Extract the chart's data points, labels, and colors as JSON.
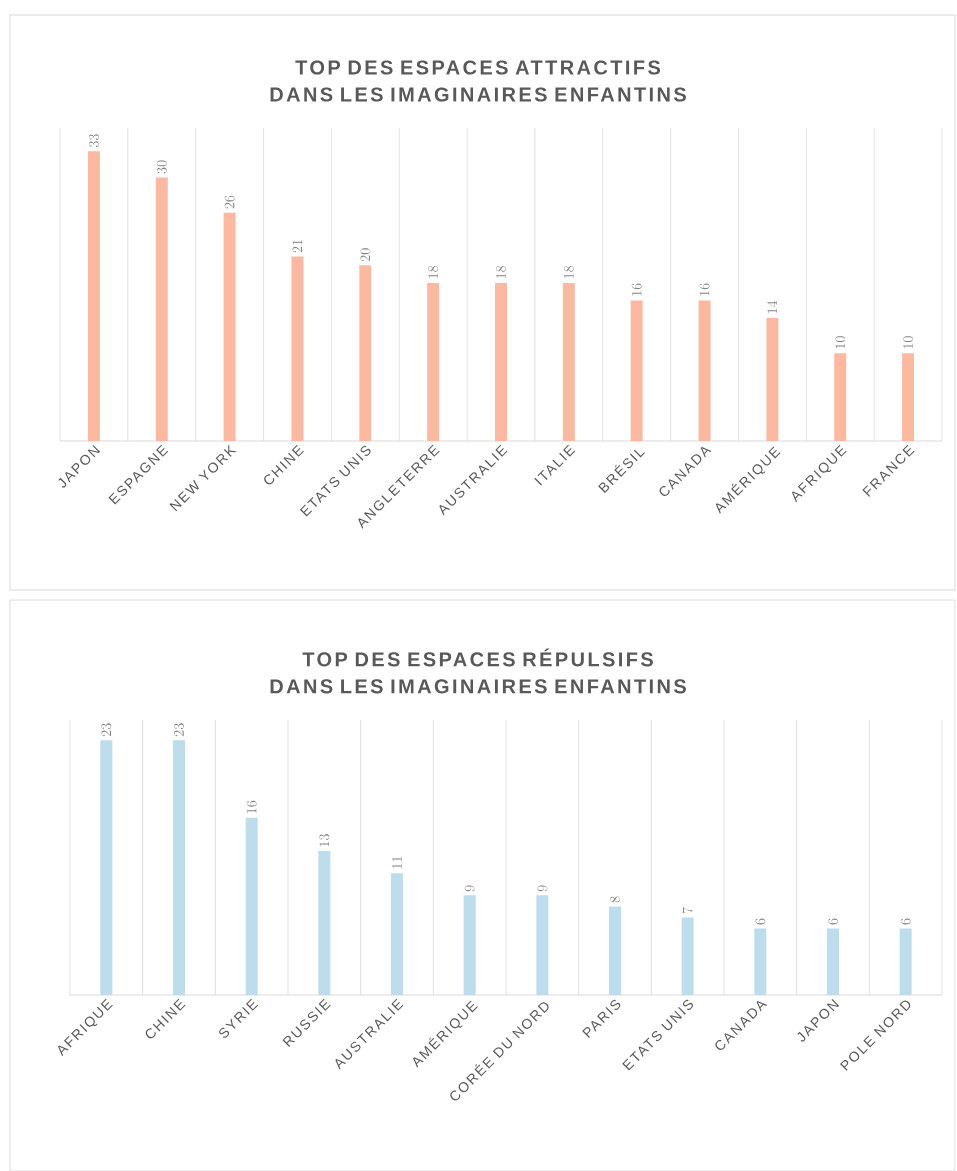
{
  "chart_data": [
    {
      "type": "bar",
      "title": "TOP DES ESPACES ATTRACTIFS DANS LES IMAGINAIRES ENFANTINS",
      "categories": [
        "JAPON",
        "ESPAGNE",
        "NEW YORK",
        "CHINE",
        "ETATS UNIS",
        "ANGLETERRE",
        "AUSTRALIE",
        "ITALIE",
        "BRÉSIL",
        "CANADA",
        "AMÉRIQUE",
        "AFRIQUE",
        "FRANCE"
      ],
      "values": [
        33,
        30,
        26,
        21,
        20,
        18,
        18,
        18,
        16,
        16,
        14,
        10,
        10
      ],
      "color": "#fbb9a1",
      "data_labels": true,
      "grid": "x"
    },
    {
      "type": "bar",
      "title": "TOP DES ESPACES RÉPULSIFS DANS LES IMAGINAIRES ENFANTINS",
      "categories": [
        "AFRIQUE",
        "CHINE",
        "SYRIE",
        "RUSSIE",
        "AUSTRALIE",
        "AMÉRIQUE",
        "CORÉE DU NORD",
        "PARIS",
        "ETATS UNIS",
        "CANADA",
        "JAPON",
        "POLE NORD"
      ],
      "values": [
        23,
        23,
        16,
        13,
        11,
        9,
        9,
        8,
        7,
        6,
        6,
        6
      ],
      "color": "#bddcec",
      "data_labels": true,
      "grid": "x"
    }
  ]
}
